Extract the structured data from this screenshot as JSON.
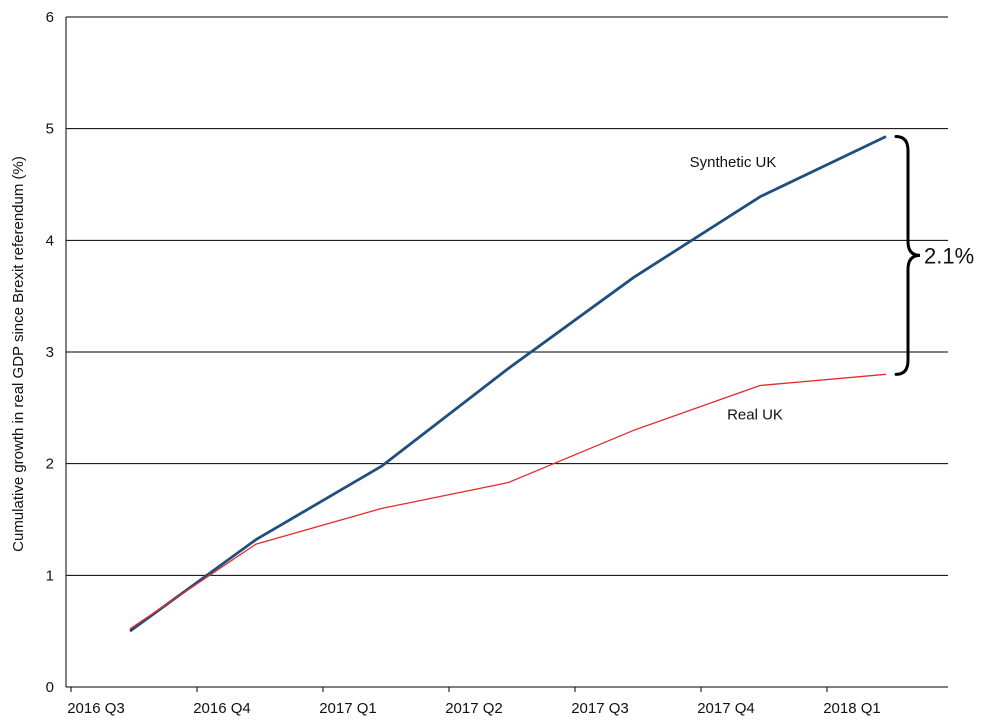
{
  "chart_data": {
    "type": "line",
    "title": "",
    "xlabel": "",
    "ylabel": "Cumulative growth in real GDP since Brexit referendum (%)",
    "categories": [
      "2016 Q3",
      "2016 Q4",
      "2017 Q1",
      "2017 Q2",
      "2017 Q3",
      "2017 Q4",
      "2018 Q1"
    ],
    "ylim": [
      0,
      6
    ],
    "yticks": [
      "0",
      "1",
      "2",
      "3",
      "4",
      "5",
      "6"
    ],
    "grid": "horizontal",
    "legend": "none",
    "series": [
      {
        "name": "Synthetic UK",
        "color": "#1f4e7f",
        "values": [
          0.5,
          1.32,
          1.98,
          2.85,
          3.67,
          4.39,
          4.93
        ]
      },
      {
        "name": "Real UK",
        "color": "#e32b2b",
        "values": [
          0.52,
          1.28,
          1.6,
          1.83,
          2.3,
          2.7,
          2.8
        ]
      }
    ],
    "annotations": [
      {
        "text": "2.1%",
        "type": "brace"
      }
    ]
  }
}
